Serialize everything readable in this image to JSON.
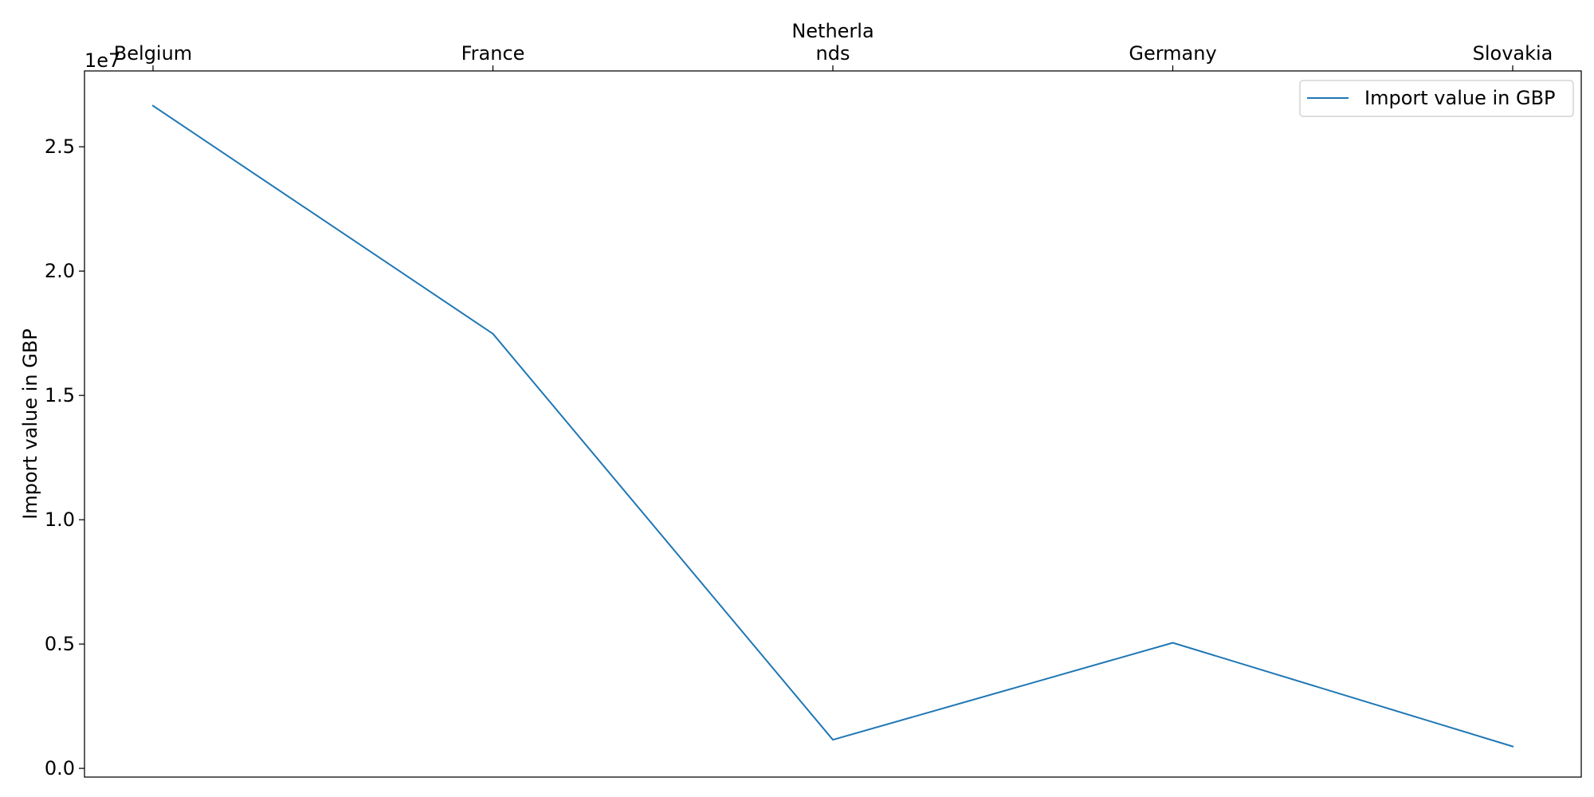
{
  "chart_data": {
    "type": "line",
    "categories": [
      "Belgium",
      "France",
      "Netherlands",
      "Germany",
      "Slovakia"
    ],
    "category_tick_labels": [
      [
        "Belgium"
      ],
      [
        "France"
      ],
      [
        "Netherla",
        "nds"
      ],
      [
        "Germany"
      ],
      [
        "Slovakia"
      ]
    ],
    "series": [
      {
        "name": "Import value in GBP",
        "values": [
          26650000,
          17480000,
          1150000,
          5050000,
          880000
        ],
        "color": "#1f77b4"
      }
    ],
    "xlabel": "",
    "ylabel": "Import value in GBP",
    "ylim": [
      -350000,
      28050000
    ],
    "yticks": [
      0,
      5000000,
      10000000,
      15000000,
      20000000,
      25000000
    ],
    "ytick_labels": [
      "0.0",
      "0.5",
      "1.0",
      "1.5",
      "2.0",
      "2.5"
    ],
    "y_offset_label": "1e7",
    "x_axis_position": "top",
    "legend_position": "top-right",
    "grid": false
  }
}
